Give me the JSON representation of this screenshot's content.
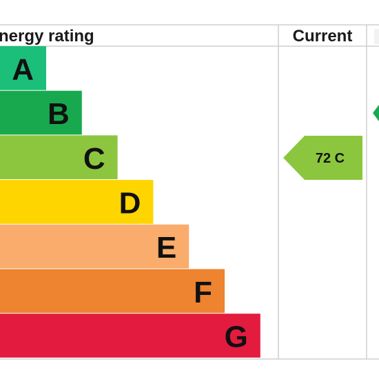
{
  "header": {
    "rating_label": "nergy rating",
    "current_label": "Current"
  },
  "chart_data": {
    "type": "bar",
    "categories": [
      "A",
      "B",
      "C",
      "D",
      "E",
      "F",
      "G"
    ],
    "colors": [
      "#1bbf7a",
      "#18a94f",
      "#8cc63f",
      "#ffd500",
      "#f9ac6b",
      "#ee8330",
      "#e31b3f"
    ],
    "current": {
      "value": 72,
      "band": "C",
      "color": "#8cc63f"
    },
    "potential": {
      "band": "B",
      "color": "#18a94f"
    }
  }
}
